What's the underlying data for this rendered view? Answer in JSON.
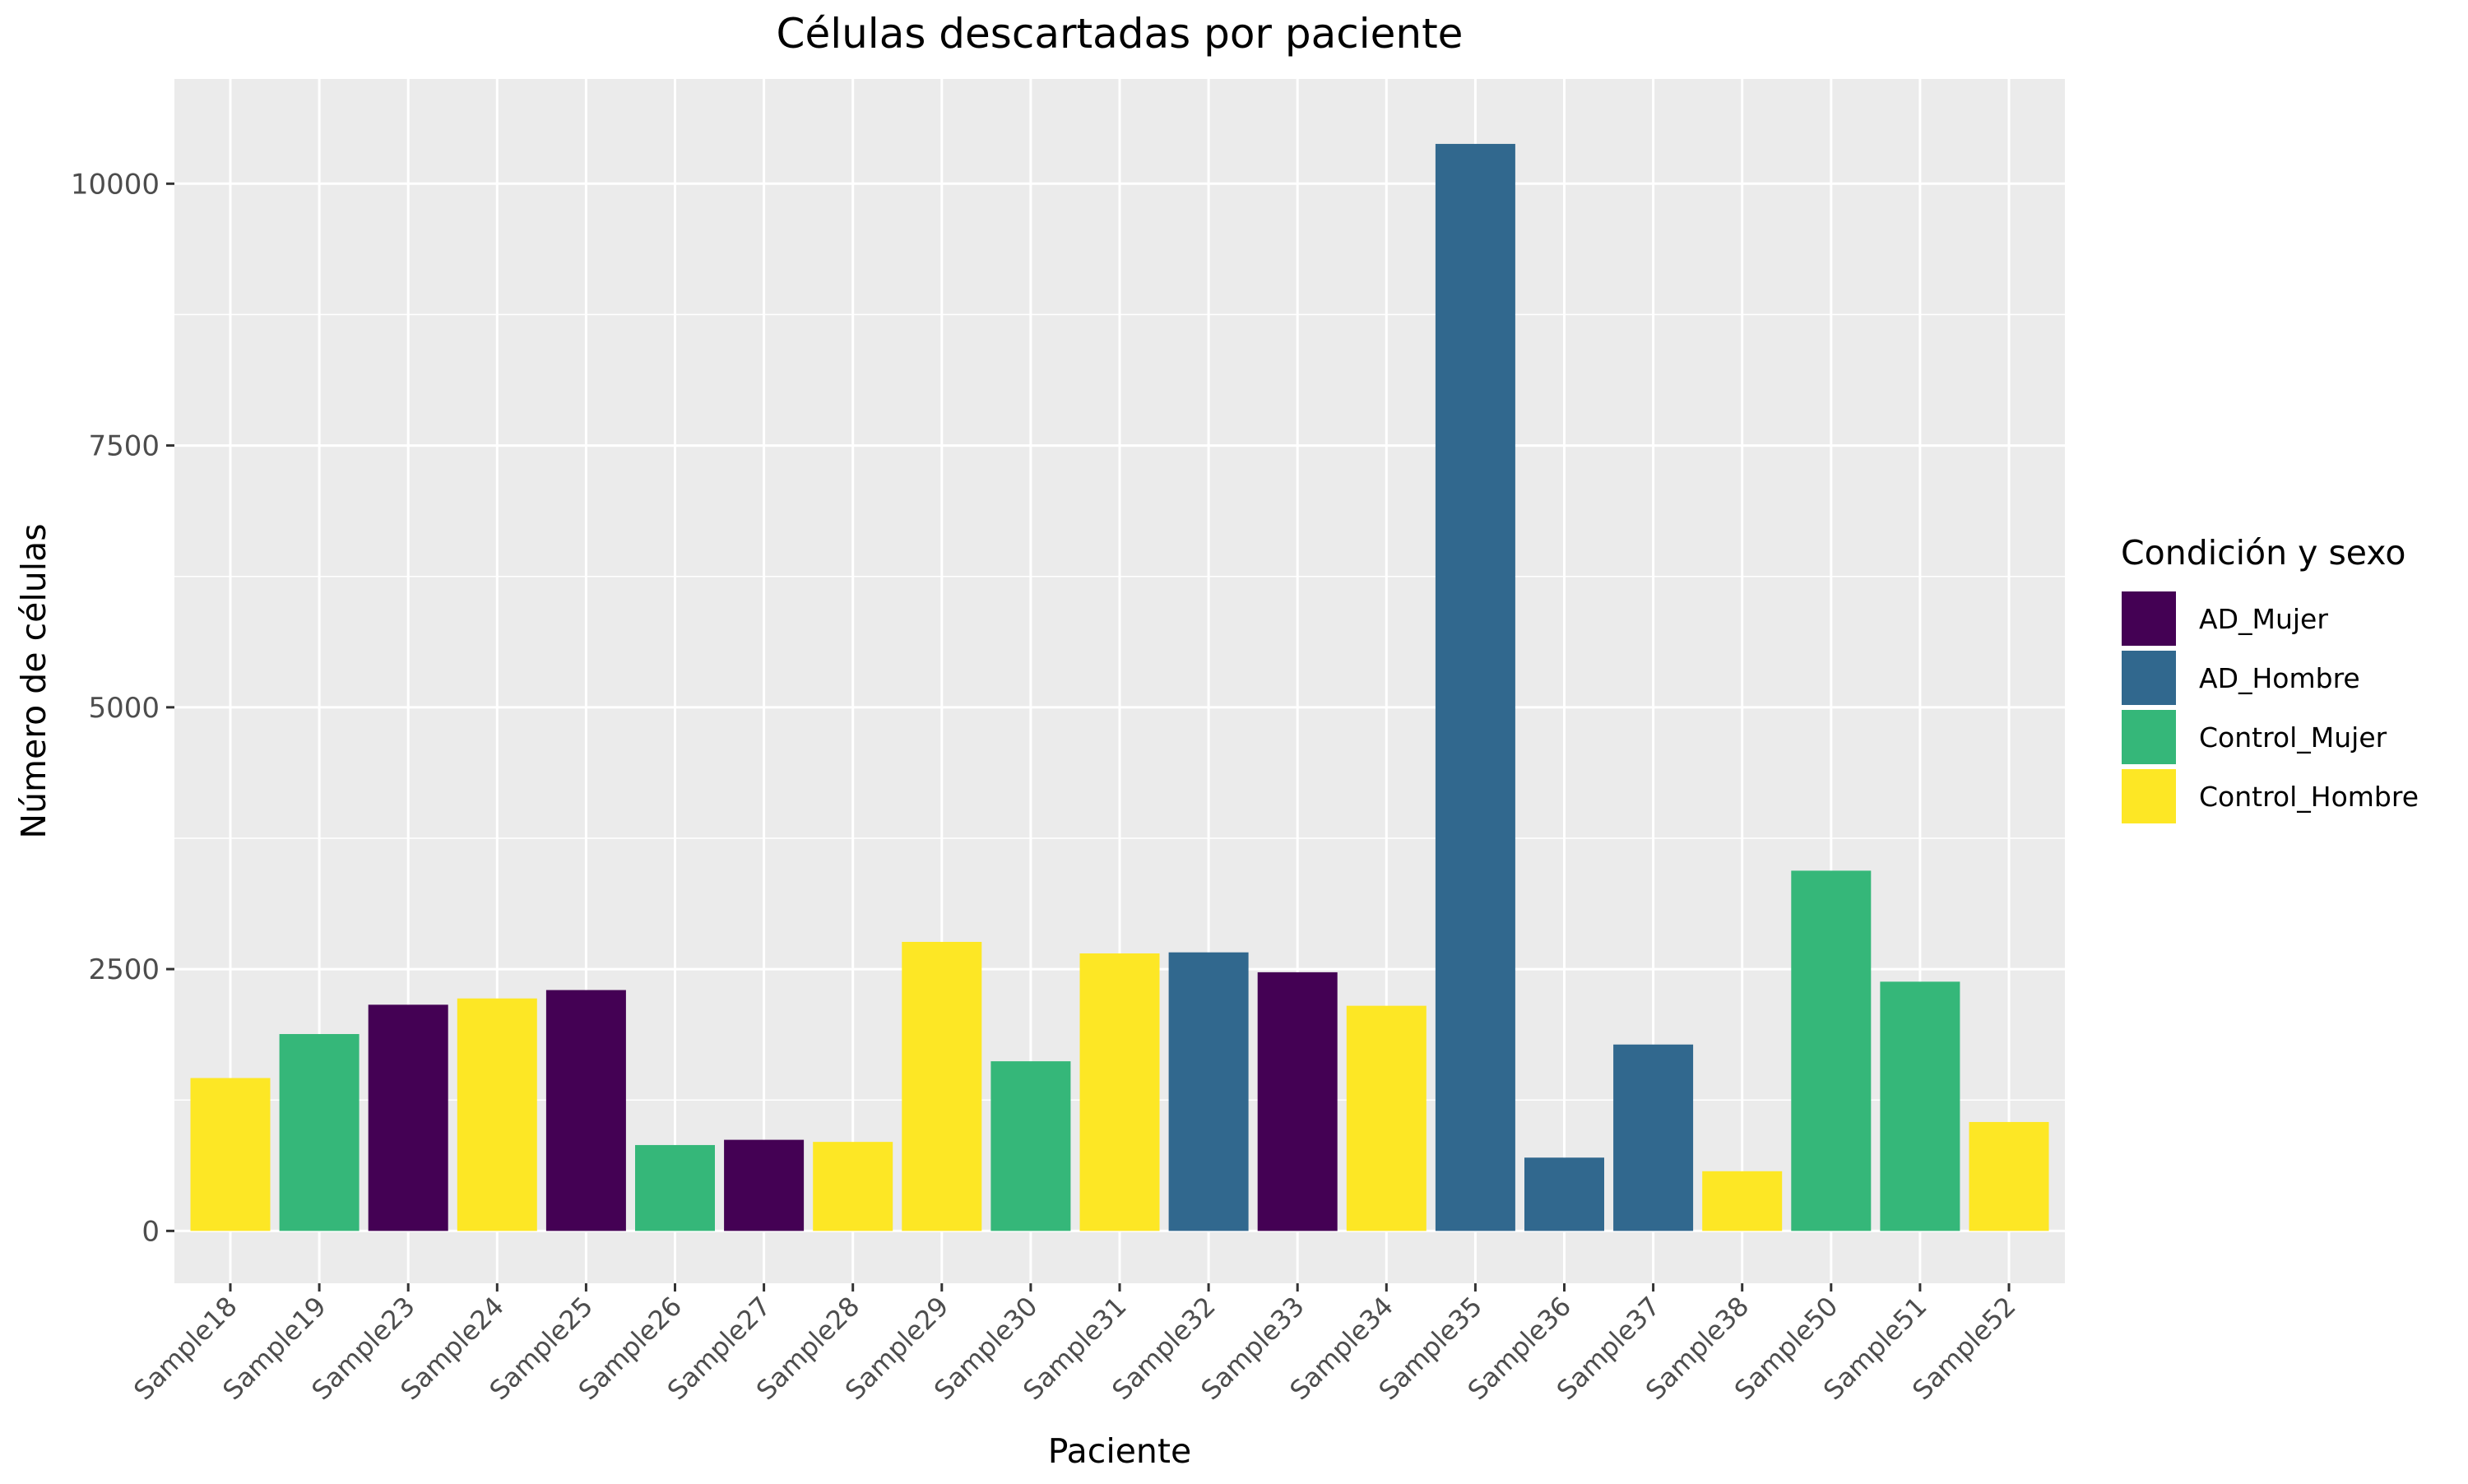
{
  "chart_data": {
    "type": "bar",
    "title": "Células descartadas por paciente",
    "xlabel": "Paciente",
    "ylabel": "Número de células",
    "ylim": [
      -500,
      11000
    ],
    "yticks": [
      0,
      2500,
      5000,
      7500,
      10000
    ],
    "grid": true,
    "legend": {
      "title": "Condición y sexo",
      "position": "right",
      "entries": [
        {
          "name": "AD_Mujer",
          "color": "#440154"
        },
        {
          "name": "AD_Hombre",
          "color": "#31688E"
        },
        {
          "name": "Control_Mujer",
          "color": "#35B779"
        },
        {
          "name": "Control_Hombre",
          "color": "#FDE725"
        }
      ]
    },
    "categories": [
      "Sample18",
      "Sample19",
      "Sample23",
      "Sample24",
      "Sample25",
      "Sample26",
      "Sample27",
      "Sample28",
      "Sample29",
      "Sample30",
      "Sample31",
      "Sample32",
      "Sample33",
      "Sample34",
      "Sample35",
      "Sample36",
      "Sample37",
      "Sample38",
      "Sample50",
      "Sample51",
      "Sample52"
    ],
    "values": [
      1460,
      1880,
      2160,
      2220,
      2300,
      820,
      870,
      850,
      2760,
      1620,
      2650,
      2660,
      2470,
      2150,
      10380,
      700,
      1780,
      570,
      3440,
      2380,
      1040
    ],
    "groups": [
      "Control_Hombre",
      "Control_Mujer",
      "AD_Mujer",
      "Control_Hombre",
      "AD_Mujer",
      "Control_Mujer",
      "AD_Mujer",
      "Control_Hombre",
      "Control_Hombre",
      "Control_Mujer",
      "Control_Hombre",
      "AD_Hombre",
      "AD_Mujer",
      "Control_Hombre",
      "AD_Hombre",
      "AD_Hombre",
      "AD_Hombre",
      "Control_Hombre",
      "Control_Mujer",
      "Control_Mujer",
      "Control_Hombre"
    ]
  }
}
